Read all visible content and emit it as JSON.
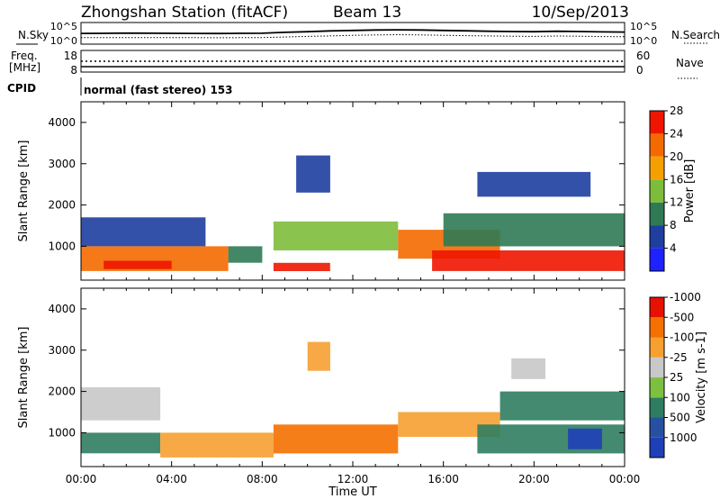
{
  "header": {
    "station": "Zhongshan Station (fitACF)",
    "beam": "Beam 13",
    "date": "10/Sep/2013"
  },
  "colors": {
    "axis": "#000000",
    "background": "#ffffff"
  },
  "chart_data": [
    {
      "id": "noise",
      "type": "line",
      "left_label": "N.Sky",
      "right_label": "N.Search",
      "left_ticks": [
        "10^5",
        "10^0"
      ],
      "right_ticks": [
        "10^5",
        "10^0"
      ],
      "scale": "log",
      "ylim": [
        1,
        100000
      ],
      "x_hours": [
        0,
        1,
        2,
        3,
        4,
        5,
        6,
        7,
        8,
        9,
        10,
        11,
        12,
        13,
        14,
        15,
        16,
        17,
        18,
        19,
        20,
        21,
        22,
        23,
        24
      ],
      "series": [
        {
          "name": "N.Sky",
          "style": "solid",
          "values": [
            300,
            320,
            350,
            330,
            310,
            300,
            290,
            320,
            340,
            600,
            900,
            1500,
            2000,
            2600,
            3000,
            2600,
            2000,
            1600,
            1200,
            1000,
            900,
            1200,
            1000,
            800,
            700
          ]
        },
        {
          "name": "N.Search",
          "style": "dotted",
          "values": [
            20,
            20,
            21,
            20,
            20,
            20,
            19,
            20,
            21,
            30,
            45,
            60,
            90,
            110,
            130,
            110,
            90,
            70,
            60,
            50,
            45,
            55,
            50,
            40,
            35
          ]
        }
      ]
    },
    {
      "id": "freq",
      "type": "line",
      "left_label": "Freq.\n[MHz]",
      "right_label": "Nave",
      "left_ticks": [
        "18",
        "8"
      ],
      "right_ticks": [
        "60",
        "0"
      ],
      "series": [
        {
          "name": "Freq.",
          "style": "solid",
          "values": [
            8,
            8
          ]
        },
        {
          "name": "Nave",
          "style": "dotted",
          "values": [
            36,
            36
          ]
        }
      ]
    },
    {
      "id": "cpid",
      "type": "table",
      "label": "CPID",
      "text": "normal (fast stereo) 153"
    },
    {
      "id": "power",
      "type": "heatmap",
      "ylabel": "Slant Range [km]",
      "ylim": [
        180,
        4500
      ],
      "y_ticks": [
        1000,
        2000,
        3000,
        4000
      ],
      "xlim_hours": [
        0,
        24
      ],
      "colorbar": {
        "label": "Power [dB]",
        "ticks": [
          "4",
          "8",
          "12",
          "16",
          "20",
          "24",
          "28"
        ],
        "colors": [
          "#1e22ff",
          "#1e3ea0",
          "#2f7a55",
          "#7dbd3b",
          "#f5a000",
          "#f56a00",
          "#ef1500"
        ]
      },
      "echo_regions": [
        {
          "t": [
            0.0,
            6.5
          ],
          "r": [
            400,
            1000
          ],
          "value": 24
        },
        {
          "t": [
            1.0,
            4.0
          ],
          "r": [
            450,
            650
          ],
          "value": 28
        },
        {
          "t": [
            0.0,
            5.5
          ],
          "r": [
            1000,
            1700
          ],
          "value": 8
        },
        {
          "t": [
            6.5,
            8.0
          ],
          "r": [
            600,
            1000
          ],
          "value": 12
        },
        {
          "t": [
            8.5,
            11.0
          ],
          "r": [
            400,
            600
          ],
          "value": 28
        },
        {
          "t": [
            8.5,
            14.0
          ],
          "r": [
            900,
            1600
          ],
          "value": 16
        },
        {
          "t": [
            9.5,
            11.0
          ],
          "r": [
            2300,
            3200
          ],
          "value": 8
        },
        {
          "t": [
            14.0,
            18.5
          ],
          "r": [
            700,
            1400
          ],
          "value": 24
        },
        {
          "t": [
            15.5,
            21.0
          ],
          "r": [
            400,
            900
          ],
          "value": 28
        },
        {
          "t": [
            21.0,
            24.0
          ],
          "r": [
            400,
            900
          ],
          "value": 28
        },
        {
          "t": [
            16.0,
            24.0
          ],
          "r": [
            1000,
            1800
          ],
          "value": 12
        },
        {
          "t": [
            17.5,
            22.5
          ],
          "r": [
            2200,
            2800
          ],
          "value": 8
        }
      ]
    },
    {
      "id": "velocity",
      "type": "heatmap",
      "ylabel": "Slant Range [km]",
      "xlabel": "Time UT",
      "ylim": [
        180,
        4500
      ],
      "y_ticks": [
        1000,
        2000,
        3000,
        4000
      ],
      "xlim_hours": [
        0,
        24
      ],
      "x_ticks": [
        "00:00",
        "04:00",
        "08:00",
        "12:00",
        "16:00",
        "20:00",
        "00:00"
      ],
      "colorbar": {
        "label": "Velocity [m s-1]",
        "ticks": [
          "1000",
          "500",
          "100",
          "25",
          "-25",
          "-100",
          "-500",
          "-1000"
        ],
        "colors": [
          "#1f3fb8",
          "#2850a0",
          "#2f7d60",
          "#7cc040",
          "#c8c8c8",
          "#f5a030",
          "#f57000",
          "#e81000"
        ]
      },
      "echo_regions": [
        {
          "t": [
            0.0,
            3.5
          ],
          "r": [
            500,
            1000
          ],
          "value": 100
        },
        {
          "t": [
            3.5,
            8.5
          ],
          "r": [
            400,
            1000
          ],
          "value": -100
        },
        {
          "t": [
            0.0,
            3.5
          ],
          "r": [
            1300,
            2100
          ],
          "value": -25
        },
        {
          "t": [
            8.5,
            14.0
          ],
          "r": [
            500,
            1200
          ],
          "value": -500
        },
        {
          "t": [
            10.0,
            11.0
          ],
          "r": [
            2500,
            3200
          ],
          "value": -100
        },
        {
          "t": [
            14.0,
            18.5
          ],
          "r": [
            900,
            1500
          ],
          "value": -100
        },
        {
          "t": [
            17.5,
            24.0
          ],
          "r": [
            500,
            1200
          ],
          "value": 100
        },
        {
          "t": [
            21.5,
            23.0
          ],
          "r": [
            600,
            1100
          ],
          "value": 1000
        },
        {
          "t": [
            18.5,
            24.0
          ],
          "r": [
            1300,
            2000
          ],
          "value": 100
        },
        {
          "t": [
            19.0,
            20.5
          ],
          "r": [
            2300,
            2800
          ],
          "value": -25
        }
      ]
    }
  ]
}
